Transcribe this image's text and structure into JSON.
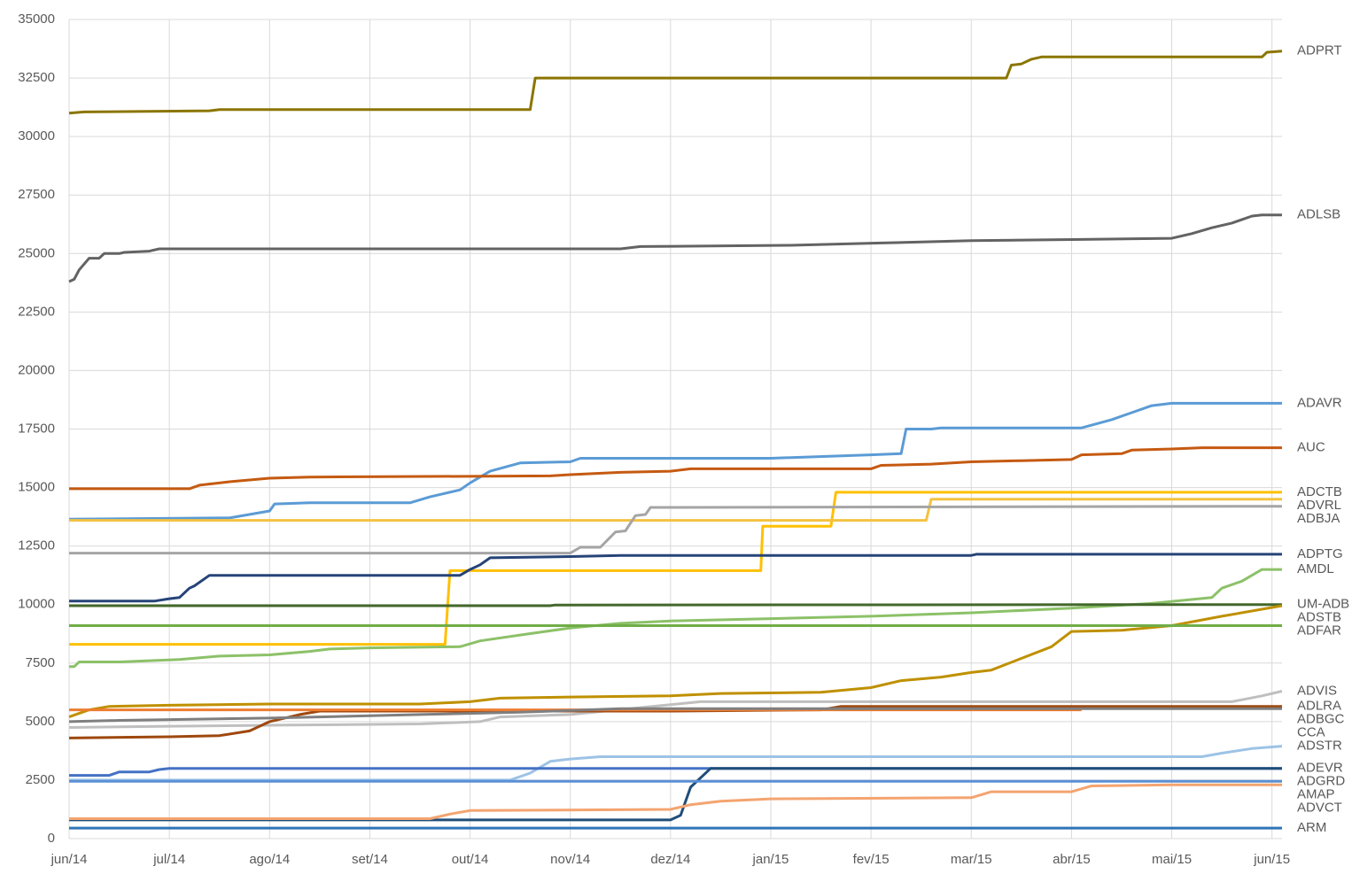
{
  "chart_data": {
    "type": "line",
    "xlim": [
      0,
      12.1
    ],
    "ylim": [
      0,
      35000
    ],
    "xticks": [
      {
        "value": 0,
        "label": "jun/14"
      },
      {
        "value": 1,
        "label": "jul/14"
      },
      {
        "value": 2,
        "label": "ago/14"
      },
      {
        "value": 3,
        "label": "set/14"
      },
      {
        "value": 4,
        "label": "out/14"
      },
      {
        "value": 5,
        "label": "nov/14"
      },
      {
        "value": 6,
        "label": "dez/14"
      },
      {
        "value": 7,
        "label": "jan/15"
      },
      {
        "value": 8,
        "label": "fev/15"
      },
      {
        "value": 9,
        "label": "mar/15"
      },
      {
        "value": 10,
        "label": "abr/15"
      },
      {
        "value": 11,
        "label": "mai/15"
      },
      {
        "value": 12,
        "label": "jun/15"
      }
    ],
    "yticks": [
      0,
      2500,
      5000,
      7500,
      10000,
      12500,
      15000,
      17500,
      20000,
      22500,
      25000,
      27500,
      30000,
      32500,
      35000
    ],
    "grid": true,
    "series": [
      {
        "name": "ADPRT",
        "color": "#8b7500",
        "x": [
          0,
          0.15,
          1.4,
          1.5,
          4.6,
          4.65,
          9.35,
          9.4,
          9.5,
          9.6,
          9.7,
          11.9,
          11.95,
          12.1
        ],
        "values": [
          31000,
          31050,
          31100,
          31150,
          31150,
          32500,
          32500,
          33050,
          33100,
          33300,
          33400,
          33400,
          33600,
          33650
        ]
      },
      {
        "name": "ADLSB",
        "color": "#636363",
        "x": [
          0,
          0.05,
          0.1,
          0.2,
          0.3,
          0.35,
          0.5,
          0.55,
          0.8,
          0.9,
          5.5,
          5.7,
          7.2,
          8.1,
          9,
          10.1,
          11,
          11.2,
          11.4,
          11.6,
          11.8,
          11.9,
          12.1
        ],
        "values": [
          23800,
          23900,
          24300,
          24800,
          24800,
          25000,
          25000,
          25050,
          25100,
          25200,
          25200,
          25300,
          25350,
          25450,
          25550,
          25600,
          25650,
          25850,
          26100,
          26300,
          26600,
          26650,
          26650
        ]
      },
      {
        "name": "ADAVR",
        "color": "#5b9bd5",
        "x": [
          0,
          1.5,
          1.6,
          2.0,
          2.05,
          2.4,
          3.4,
          3.6,
          3.9,
          4.0,
          4.2,
          4.5,
          5.0,
          5.1,
          7.0,
          8.0,
          8.3,
          8.35,
          8.6,
          8.7,
          10.1,
          10.4,
          10.6,
          10.8,
          11.0,
          12.1
        ],
        "values": [
          13650,
          13700,
          13700,
          14000,
          14300,
          14350,
          14350,
          14600,
          14900,
          15200,
          15700,
          16050,
          16100,
          16250,
          16250,
          16400,
          16450,
          17500,
          17500,
          17550,
          17550,
          17900,
          18200,
          18500,
          18600,
          18600
        ]
      },
      {
        "name": "AUC",
        "color": "#c55a11",
        "x": [
          0,
          1.2,
          1.3,
          1.6,
          2.0,
          2.4,
          4.8,
          5.0,
          5.5,
          6.0,
          6.2,
          8.0,
          8.1,
          8.6,
          9.0,
          9.5,
          10.0,
          10.1,
          10.5,
          10.6,
          11.0,
          11.3,
          12.1
        ],
        "values": [
          14950,
          14950,
          15100,
          15250,
          15400,
          15450,
          15500,
          15550,
          15650,
          15700,
          15800,
          15800,
          15950,
          16000,
          16100,
          16150,
          16200,
          16400,
          16450,
          16600,
          16650,
          16700,
          16700
        ]
      },
      {
        "name": "ADCTB",
        "color": "#ffc000",
        "x": [
          0,
          3.75,
          3.8,
          6.9,
          6.92,
          7.6,
          7.65,
          12.1
        ],
        "values": [
          8300,
          8300,
          11450,
          11450,
          13350,
          13350,
          14800,
          14800
        ]
      },
      {
        "name": "ADVRL",
        "color": "#f4c242",
        "x": [
          0,
          8.55,
          8.6,
          12.1
        ],
        "values": [
          13600,
          13600,
          14500,
          14500
        ]
      },
      {
        "name": "ADBJA",
        "color": "#a5a5a5",
        "x": [
          0,
          5.0,
          5.1,
          5.3,
          5.45,
          5.55,
          5.65,
          5.75,
          5.8,
          12.1
        ],
        "values": [
          12200,
          12200,
          12450,
          12450,
          13100,
          13150,
          13800,
          13850,
          14150,
          14200
        ]
      },
      {
        "name": "ADPTG",
        "color": "#264478",
        "x": [
          0,
          0.85,
          1.0,
          1.1,
          1.2,
          1.25,
          1.4,
          3.9,
          4.0,
          4.1,
          4.2,
          5.0,
          5.5,
          9.0,
          9.05,
          12.1
        ],
        "values": [
          10150,
          10150,
          10250,
          10300,
          10700,
          10800,
          11250,
          11250,
          11500,
          11700,
          12000,
          12050,
          12100,
          12100,
          12150,
          12150
        ]
      },
      {
        "name": "AMDL",
        "color": "#8cc168",
        "x": [
          0,
          0.05,
          0.1,
          0.5,
          0.8,
          1.1,
          1.5,
          2.0,
          2.4,
          2.6,
          3.0,
          3.9,
          4.1,
          4.5,
          5.0,
          5.5,
          6.0,
          7.0,
          8.0,
          9.0,
          10.0,
          10.8,
          11.4,
          11.5,
          11.7,
          11.9,
          12.1
        ],
        "values": [
          7350,
          7350,
          7550,
          7550,
          7600,
          7650,
          7800,
          7850,
          8000,
          8100,
          8150,
          8200,
          8450,
          8700,
          9000,
          9200,
          9300,
          9400,
          9500,
          9650,
          9850,
          10050,
          10300,
          10700,
          11000,
          11500,
          11500
        ]
      },
      {
        "name": "UM-ADB",
        "color": "#43682b",
        "x": [
          0,
          4.8,
          4.85,
          12.1
        ],
        "values": [
          9950,
          9950,
          9980,
          10000
        ]
      },
      {
        "name": "ADSTB",
        "color": "#bf9000",
        "x": [
          0,
          0.2,
          0.4,
          1.0,
          2.0,
          3.5,
          4.0,
          4.3,
          5.0,
          6.0,
          6.5,
          7.5,
          8.0,
          8.3,
          8.7,
          9.0,
          9.2,
          9.5,
          9.8,
          10.0,
          10.5,
          11.0,
          11.5,
          12.1
        ],
        "values": [
          5200,
          5500,
          5650,
          5700,
          5750,
          5750,
          5850,
          6000,
          6050,
          6100,
          6200,
          6250,
          6450,
          6750,
          6900,
          7100,
          7200,
          7700,
          8200,
          8850,
          8900,
          9100,
          9500,
          9950
        ]
      },
      {
        "name": "ADFAR",
        "color": "#70ad47",
        "x": [
          0,
          12.1
        ],
        "values": [
          9100,
          9100
        ]
      },
      {
        "name": "ADVIS",
        "color": "#bfbfbf",
        "x": [
          0,
          1.0,
          2.2,
          3.5,
          4.1,
          4.3,
          5.0,
          6.3,
          11.6,
          11.9,
          12.1
        ],
        "values": [
          4750,
          4800,
          4850,
          4900,
          5000,
          5200,
          5300,
          5850,
          5850,
          6100,
          6300
        ]
      },
      {
        "name": "ADLRA",
        "color": "#9e480e",
        "x": [
          0,
          1.0,
          1.5,
          1.8,
          2.0,
          2.3,
          2.5,
          6.0,
          7.5,
          7.7,
          12.1
        ],
        "values": [
          4300,
          4350,
          4400,
          4600,
          5000,
          5300,
          5450,
          5450,
          5500,
          5650,
          5650
        ]
      },
      {
        "name": "ADBGC",
        "color": "#ed7d31",
        "x": [
          0,
          10.1
        ],
        "values": [
          5500,
          5500
        ]
      },
      {
        "name": "CCA",
        "color": "#7f7f7f",
        "x": [
          0,
          0.5,
          2.0,
          3.5,
          4.5,
          5.5,
          12.1
        ],
        "values": [
          5000,
          5050,
          5150,
          5300,
          5400,
          5550,
          5550
        ]
      },
      {
        "name": "ADSTR",
        "color": "#9dc3e6",
        "x": [
          0,
          4.4,
          4.6,
          4.8,
          5.0,
          5.3,
          11.3,
          11.5,
          11.8,
          12.1
        ],
        "values": [
          2500,
          2500,
          2800,
          3300,
          3400,
          3500,
          3500,
          3650,
          3850,
          3950
        ]
      },
      {
        "name": "ADEVR",
        "color": "#4472c4",
        "x": [
          0,
          0.4,
          0.5,
          0.8,
          0.9,
          1.0,
          12.1
        ],
        "values": [
          2700,
          2700,
          2850,
          2850,
          2950,
          3000,
          3000
        ]
      },
      {
        "name": "ADGRD",
        "color": "#1f4e79",
        "x": [
          0,
          6.0,
          6.1,
          6.2,
          6.3,
          6.4,
          12.1
        ],
        "values": [
          800,
          800,
          1000,
          2200,
          2600,
          3000,
          3000
        ]
      },
      {
        "name": "AMAP",
        "color": "#5b8fd5",
        "x": [
          0,
          12.1
        ],
        "values": [
          2450,
          2450
        ]
      },
      {
        "name": "ADVCT",
        "color": "#f4a470",
        "x": [
          0,
          3.6,
          3.8,
          4.0,
          6.0,
          6.2,
          6.5,
          7.0,
          9.0,
          9.2,
          10.0,
          10.2,
          11.0,
          12.1
        ],
        "values": [
          850,
          850,
          1050,
          1200,
          1250,
          1450,
          1600,
          1700,
          1750,
          2000,
          2000,
          2250,
          2300,
          2300
        ]
      },
      {
        "name": "ARM",
        "color": "#2e75b6",
        "x": [
          0,
          12.1
        ],
        "values": [
          450,
          450
        ]
      }
    ]
  }
}
